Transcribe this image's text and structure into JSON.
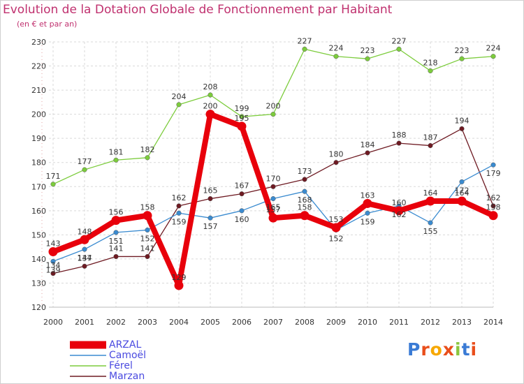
{
  "title": "Evolution de la Dotation Globale de Fonctionnement par Habitant",
  "subtitle": "(en € et par an)",
  "logo_text": "Proxiti",
  "chart_data": {
    "type": "line",
    "title": "Evolution de la Dotation Globale de Fonctionnement par Habitant",
    "ylabel": "(en € et par an)",
    "xlabel": "",
    "ylim": [
      120,
      230
    ],
    "y_ticks": [
      120,
      130,
      140,
      150,
      160,
      170,
      180,
      190,
      200,
      210,
      220,
      230
    ],
    "grid": true,
    "legend": "bottom-left",
    "categories": [
      "2000",
      "2001",
      "2002",
      "2003",
      "2004",
      "2005",
      "2006",
      "2007",
      "2008",
      "2009",
      "2010",
      "2011",
      "2012",
      "2013",
      "2014"
    ],
    "series": [
      {
        "name": "ARZAL",
        "color": "#e8000b",
        "values": [
          143,
          148,
          156,
          158,
          129,
          200,
          195,
          157,
          158,
          153,
          163,
          160,
          164,
          164,
          158
        ]
      },
      {
        "name": "Camoël",
        "color": "#3a8bd0",
        "values": [
          139,
          144,
          151,
          152,
          159,
          157,
          160,
          165,
          168,
          152,
          159,
          162,
          155,
          172,
          179
        ]
      },
      {
        "name": "Férel",
        "color": "#7ccc3c",
        "values": [
          171,
          177,
          181,
          182,
          204,
          208,
          199,
          200,
          227,
          224,
          223,
          227,
          218,
          223,
          224
        ]
      },
      {
        "name": "Marzan",
        "color": "#6e1a22",
        "values": [
          134,
          137,
          141,
          141,
          162,
          165,
          167,
          170,
          173,
          180,
          184,
          188,
          187,
          194,
          162
        ]
      }
    ]
  }
}
